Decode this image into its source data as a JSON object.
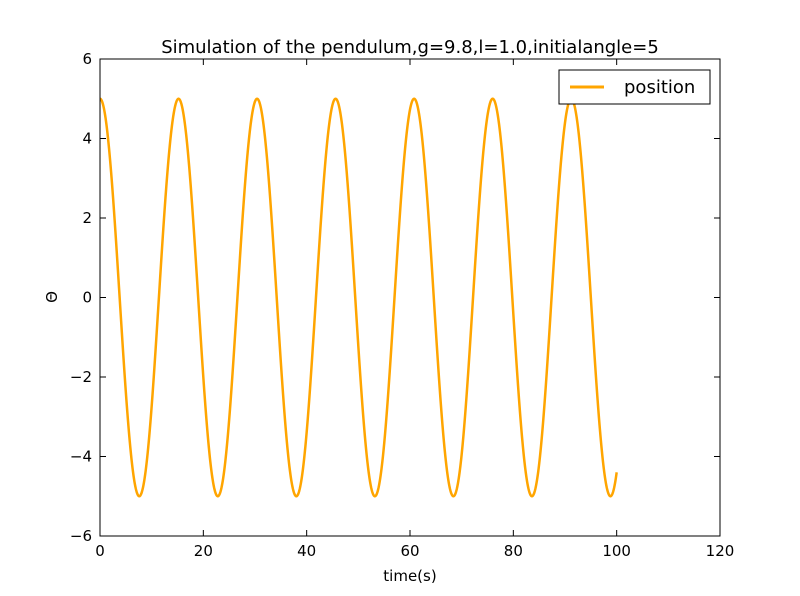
{
  "chart_data": {
    "type": "line",
    "title": "Simulation of the pendulum,g=9.8,l=1.0,initialangle=5",
    "xlabel": "time(s)",
    "ylabel": "Θ",
    "xlim": [
      0,
      120
    ],
    "ylim": [
      -6,
      6
    ],
    "xticks": [
      0,
      20,
      40,
      60,
      80,
      100,
      120
    ],
    "yticks": [
      -6,
      -4,
      -2,
      0,
      2,
      4,
      6
    ],
    "xtick_labels": [
      "0",
      "20",
      "40",
      "60",
      "80",
      "100",
      "120"
    ],
    "ytick_labels": [
      "−6",
      "−4",
      "−2",
      "0",
      "2",
      "4",
      "6"
    ],
    "grid": false,
    "legend_position": "top-right",
    "series": [
      {
        "name": "position",
        "color": "#FFA500",
        "model": "damped-free cosine",
        "amplitude": 5,
        "period": 15.2,
        "x_start": 0,
        "x_end": 100,
        "start_value": 5,
        "end_value": -4.4,
        "peaks": [
          {
            "x": 0,
            "y": 5
          },
          {
            "x": 15.2,
            "y": 5
          },
          {
            "x": 30.4,
            "y": 5
          },
          {
            "x": 45.6,
            "y": 5
          },
          {
            "x": 60.8,
            "y": 5
          },
          {
            "x": 76.0,
            "y": 5
          },
          {
            "x": 91.2,
            "y": 5
          }
        ],
        "troughs": [
          {
            "x": 7.6,
            "y": -5
          },
          {
            "x": 22.8,
            "y": -5
          },
          {
            "x": 38.0,
            "y": -5
          },
          {
            "x": 53.2,
            "y": -5
          },
          {
            "x": 68.4,
            "y": -5
          },
          {
            "x": 83.6,
            "y": -5
          },
          {
            "x": 98.8,
            "y": -5
          }
        ]
      }
    ]
  }
}
